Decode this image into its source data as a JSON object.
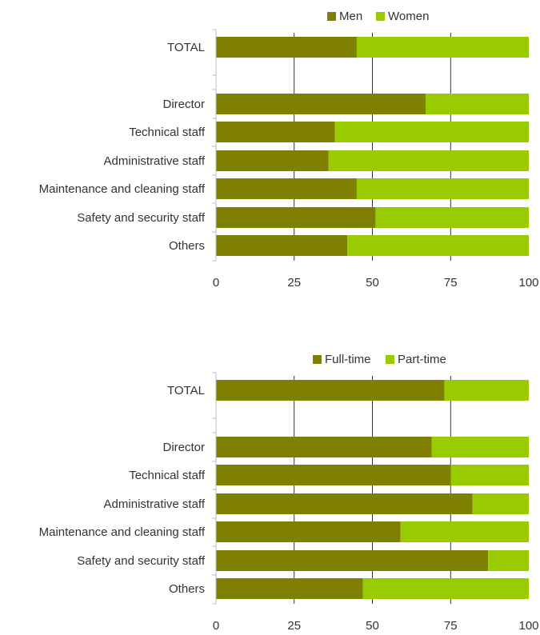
{
  "colors": {
    "primary": "#7f7f00",
    "secondary": "#99cc00",
    "grid": "#000000",
    "axis": "#bfbfbf"
  },
  "chart_data": [
    {
      "type": "bar",
      "orientation": "horizontal",
      "stacked": true,
      "legend_position": "top",
      "categories": [
        "TOTAL",
        "",
        "Director",
        "Technical staff",
        "Administrative staff",
        "Maintenance and cleaning staff",
        "Safety and security staff",
        "Others"
      ],
      "series": [
        {
          "name": "Men",
          "values": [
            45,
            null,
            67,
            38,
            36,
            45,
            51,
            42
          ]
        },
        {
          "name": "Women",
          "values": [
            55,
            null,
            33,
            62,
            64,
            55,
            49,
            58
          ]
        }
      ],
      "xlim": [
        0,
        100
      ],
      "xticks": [
        "0",
        "25",
        "50",
        "75",
        "100"
      ],
      "grid": true
    },
    {
      "type": "bar",
      "orientation": "horizontal",
      "stacked": true,
      "legend_position": "top",
      "categories": [
        "TOTAL",
        "",
        "Director",
        "Technical staff",
        "Administrative staff",
        "Maintenance and cleaning staff",
        "Safety and security staff",
        "Others"
      ],
      "series": [
        {
          "name": "Full-time",
          "values": [
            73,
            null,
            69,
            75,
            82,
            59,
            87,
            47
          ]
        },
        {
          "name": "Part-time",
          "values": [
            27,
            null,
            31,
            25,
            18,
            41,
            13,
            53
          ]
        }
      ],
      "xlim": [
        0,
        100
      ],
      "xticks": [
        "0",
        "25",
        "50",
        "75",
        "100"
      ],
      "grid": true
    }
  ]
}
